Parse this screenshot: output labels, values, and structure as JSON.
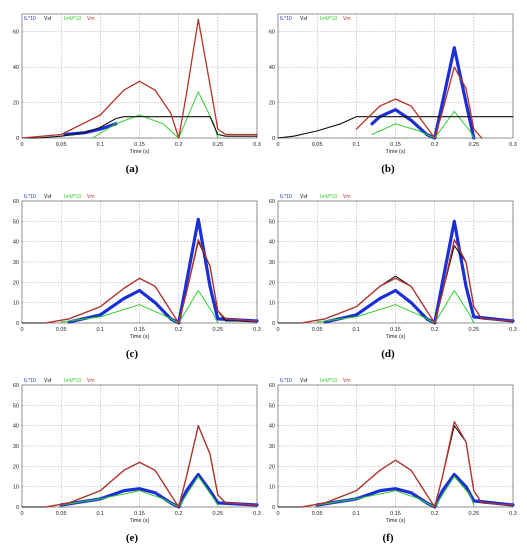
{
  "colors": {
    "IL": "#1c2fd6",
    "Vsf": "#111111",
    "ImM": "#2fcf2f",
    "Vm": "#b5332b",
    "grid": "#9a9a9a"
  },
  "chart_data": [
    {
      "type": "line",
      "label": "(a)",
      "xlabel": "Time (s)",
      "xlim": [
        0,
        0.3
      ],
      "ylim": [
        0,
        70
      ],
      "xticks": [
        "0",
        "0.05",
        "0.1",
        "0.15",
        "0.2",
        "0.25",
        "0.3"
      ],
      "yticks": [
        "0",
        "20",
        "40",
        "60"
      ],
      "legend": [
        "IL*10",
        "Vsf",
        "ImM*10",
        "Vm"
      ],
      "series": [
        {
          "name": "IL*10",
          "x": [
            0.055,
            0.08,
            0.1,
            0.12
          ],
          "y": [
            2,
            3,
            5,
            8
          ]
        },
        {
          "name": "Vsf",
          "x": [
            0,
            0.02,
            0.05,
            0.08,
            0.1,
            0.12,
            0.13,
            0.18,
            0.23,
            0.24,
            0.25,
            0.26,
            0.3
          ],
          "y": [
            0,
            0,
            1,
            3,
            6,
            11,
            12,
            12,
            12,
            12,
            2,
            1,
            1
          ]
        },
        {
          "name": "ImM*10",
          "x": [
            0.09,
            0.12,
            0.15,
            0.18,
            0.2,
            0.225,
            0.245,
            0.25
          ],
          "y": [
            0,
            8,
            13,
            8,
            0,
            26,
            8,
            0
          ]
        },
        {
          "name": "Vm",
          "x": [
            0,
            0.05,
            0.1,
            0.13,
            0.15,
            0.17,
            0.19,
            0.2,
            0.21,
            0.225,
            0.24,
            0.25,
            0.26,
            0.3
          ],
          "y": [
            0,
            2,
            13,
            27,
            32,
            27,
            14,
            0,
            25,
            67,
            30,
            5,
            2,
            2
          ]
        }
      ]
    },
    {
      "type": "line",
      "label": "(b)",
      "xlabel": "Time (s)",
      "xlim": [
        0,
        0.3
      ],
      "ylim": [
        0,
        70
      ],
      "xticks": [
        "0",
        "0.05",
        "0.1",
        "0.15",
        "0.2",
        "0.25",
        "0.3"
      ],
      "yticks": [
        "0",
        "20",
        "40",
        "60"
      ],
      "legend": [
        "IL*10",
        "Vsf",
        "ImM*10",
        "Vm"
      ],
      "series": [
        {
          "name": "IL*10",
          "x": [
            0.12,
            0.13,
            0.15,
            0.17,
            0.19,
            0.2,
            0.21,
            0.225,
            0.24,
            0.25
          ],
          "y": [
            8,
            12,
            16,
            10,
            2,
            0,
            20,
            51,
            20,
            0
          ]
        },
        {
          "name": "Vsf",
          "x": [
            0,
            0.02,
            0.05,
            0.08,
            0.1,
            0.25,
            0.3
          ],
          "y": [
            0,
            1,
            4,
            8,
            12,
            12,
            12
          ]
        },
        {
          "name": "ImM*10",
          "x": [
            0.12,
            0.15,
            0.18,
            0.2,
            0.225,
            0.245,
            0.25
          ],
          "y": [
            2,
            8,
            4,
            0,
            15,
            4,
            0
          ]
        },
        {
          "name": "Vm",
          "x": [
            0.1,
            0.13,
            0.15,
            0.17,
            0.19,
            0.2,
            0.21,
            0.225,
            0.24,
            0.25,
            0.26
          ],
          "y": [
            5,
            18,
            22,
            18,
            6,
            0,
            15,
            40,
            28,
            5,
            0
          ]
        }
      ]
    },
    {
      "type": "line",
      "label": "(c)",
      "xlabel": "Time (s)",
      "xlim": [
        0,
        0.3
      ],
      "ylim": [
        0,
        60
      ],
      "xticks": [
        "0",
        "0.05",
        "0.1",
        "0.15",
        "0.2",
        "0.25",
        "0.3"
      ],
      "yticks": [
        "0",
        "10",
        "20",
        "30",
        "40",
        "50",
        "60"
      ],
      "legend": [
        "IL*10",
        "Vsf",
        "ImM*10",
        "Vm"
      ],
      "series": [
        {
          "name": "IL*10",
          "x": [
            0.06,
            0.1,
            0.13,
            0.15,
            0.17,
            0.19,
            0.2,
            0.21,
            0.225,
            0.24,
            0.25,
            0.3
          ],
          "y": [
            0.5,
            4,
            12,
            16,
            10,
            2,
            0,
            20,
            51,
            18,
            2,
            1
          ]
        },
        {
          "name": "Vsf",
          "x": [
            0,
            0.03,
            0.06,
            0.1,
            0.13,
            0.15,
            0.17,
            0.19,
            0.2,
            0.21,
            0.225,
            0.24,
            0.25,
            0.26,
            0.3
          ],
          "y": [
            0,
            0,
            2,
            8,
            17,
            22,
            18,
            6,
            0,
            15,
            40,
            28,
            6,
            1,
            1
          ]
        },
        {
          "name": "ImM*10",
          "x": [
            0.05,
            0.1,
            0.15,
            0.18,
            0.2,
            0.225,
            0.245,
            0.25
          ],
          "y": [
            0.5,
            3,
            9,
            4,
            0,
            16,
            4,
            0
          ]
        },
        {
          "name": "Vm",
          "x": [
            0.03,
            0.06,
            0.1,
            0.13,
            0.15,
            0.17,
            0.19,
            0.2,
            0.21,
            0.225,
            0.24,
            0.25,
            0.26,
            0.3
          ],
          "y": [
            0,
            2,
            8,
            17,
            22,
            18,
            6,
            0,
            15,
            41,
            28,
            6,
            2,
            1
          ]
        }
      ]
    },
    {
      "type": "line",
      "label": "(d)",
      "xlabel": "Time (s)",
      "xlim": [
        0,
        0.3
      ],
      "ylim": [
        0,
        60
      ],
      "xticks": [
        "0",
        "0.05",
        "0.1",
        "0.15",
        "0.2",
        "0.25",
        "0.3"
      ],
      "yticks": [
        "0",
        "10",
        "20",
        "30",
        "40",
        "50",
        "60"
      ],
      "legend": [
        "IL*10",
        "Vsf",
        "ImM*10",
        "Vm"
      ],
      "series": [
        {
          "name": "IL*10",
          "x": [
            0.06,
            0.1,
            0.13,
            0.15,
            0.17,
            0.19,
            0.2,
            0.21,
            0.225,
            0.24,
            0.25,
            0.3
          ],
          "y": [
            0.5,
            4,
            12,
            16,
            10,
            2,
            0,
            20,
            50,
            18,
            3,
            1
          ]
        },
        {
          "name": "Vsf",
          "x": [
            0,
            0.03,
            0.06,
            0.1,
            0.13,
            0.15,
            0.17,
            0.19,
            0.2,
            0.21,
            0.225,
            0.24,
            0.25,
            0.26,
            0.3
          ],
          "y": [
            0,
            0,
            2,
            8,
            18,
            23,
            18,
            6,
            0,
            15,
            38,
            30,
            8,
            2,
            1
          ]
        },
        {
          "name": "ImM*10",
          "x": [
            0.05,
            0.1,
            0.15,
            0.18,
            0.2,
            0.225,
            0.245,
            0.25
          ],
          "y": [
            0.5,
            3,
            9,
            4,
            0,
            16,
            4,
            0
          ]
        },
        {
          "name": "Vm",
          "x": [
            0.03,
            0.06,
            0.1,
            0.13,
            0.15,
            0.17,
            0.19,
            0.2,
            0.21,
            0.225,
            0.24,
            0.25,
            0.26,
            0.3
          ],
          "y": [
            0,
            2,
            8,
            18,
            22,
            18,
            6,
            0,
            15,
            41,
            30,
            8,
            2,
            1
          ]
        }
      ]
    },
    {
      "type": "line",
      "label": "(e)",
      "xlabel": "Time (s)",
      "xlim": [
        0,
        0.3
      ],
      "ylim": [
        0,
        60
      ],
      "xticks": [
        "0",
        "0.05",
        "0.1",
        "0.15",
        "0.2",
        "0.25",
        "0.3"
      ],
      "yticks": [
        "0",
        "10",
        "20",
        "30",
        "40",
        "50",
        "60"
      ],
      "legend": [
        "IL*10",
        "Vsf",
        "ImM*10",
        "Vm"
      ],
      "series": [
        {
          "name": "IL*10",
          "x": [
            0.05,
            0.1,
            0.13,
            0.15,
            0.17,
            0.19,
            0.2,
            0.21,
            0.225,
            0.24,
            0.25,
            0.3
          ],
          "y": [
            1,
            4,
            8,
            9,
            7,
            2,
            0,
            8,
            16,
            8,
            2,
            1
          ]
        },
        {
          "name": "Vsf",
          "x": [
            0,
            0.03,
            0.06,
            0.1,
            0.13,
            0.15,
            0.17,
            0.19,
            0.2,
            0.21,
            0.225,
            0.24,
            0.25,
            0.26,
            0.3
          ],
          "y": [
            0,
            0,
            2,
            8,
            18,
            22,
            18,
            6,
            0,
            15,
            40,
            26,
            6,
            2,
            1
          ]
        },
        {
          "name": "ImM*10",
          "x": [
            0.05,
            0.1,
            0.15,
            0.18,
            0.2,
            0.225,
            0.245,
            0.25
          ],
          "y": [
            1,
            4,
            8,
            4,
            0,
            15,
            4,
            1
          ]
        },
        {
          "name": "Vm",
          "x": [
            0.03,
            0.06,
            0.1,
            0.13,
            0.15,
            0.17,
            0.19,
            0.2,
            0.21,
            0.225,
            0.24,
            0.25,
            0.26,
            0.3
          ],
          "y": [
            0,
            2,
            8,
            18,
            22,
            18,
            6,
            0,
            15,
            40,
            26,
            6,
            2,
            1
          ]
        }
      ]
    },
    {
      "type": "line",
      "label": "(f)",
      "xlabel": "Time (s)",
      "xlim": [
        0,
        0.3
      ],
      "ylim": [
        0,
        60
      ],
      "xticks": [
        "0",
        "0.05",
        "0.1",
        "0.15",
        "0.2",
        "0.25",
        "0.3"
      ],
      "yticks": [
        "0",
        "10",
        "20",
        "30",
        "40",
        "50",
        "60"
      ],
      "legend": [
        "IL*10",
        "Vsf",
        "ImM*10",
        "Vm"
      ],
      "series": [
        {
          "name": "IL*10",
          "x": [
            0.05,
            0.1,
            0.13,
            0.15,
            0.17,
            0.19,
            0.2,
            0.21,
            0.225,
            0.24,
            0.25,
            0.3
          ],
          "y": [
            1,
            4,
            8,
            9,
            7,
            2,
            0,
            8,
            16,
            10,
            3,
            1
          ]
        },
        {
          "name": "Vsf",
          "x": [
            0,
            0.03,
            0.06,
            0.1,
            0.13,
            0.15,
            0.17,
            0.19,
            0.2,
            0.21,
            0.225,
            0.24,
            0.25,
            0.26,
            0.3
          ],
          "y": [
            0,
            0,
            2,
            8,
            18,
            23,
            18,
            6,
            0,
            15,
            40,
            32,
            8,
            2,
            1
          ]
        },
        {
          "name": "ImM*10",
          "x": [
            0.05,
            0.1,
            0.15,
            0.18,
            0.2,
            0.225,
            0.245,
            0.25
          ],
          "y": [
            1,
            4,
            8,
            4,
            0,
            15,
            6,
            1
          ]
        },
        {
          "name": "Vm",
          "x": [
            0.03,
            0.06,
            0.1,
            0.13,
            0.15,
            0.17,
            0.19,
            0.2,
            0.21,
            0.225,
            0.24,
            0.25,
            0.26,
            0.3
          ],
          "y": [
            0,
            2,
            8,
            18,
            23,
            18,
            6,
            0,
            15,
            42,
            32,
            8,
            2,
            1
          ]
        }
      ]
    }
  ]
}
